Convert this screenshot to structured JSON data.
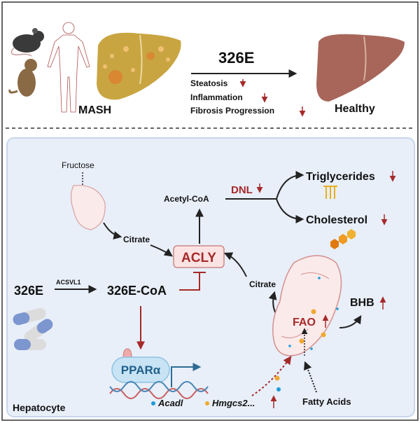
{
  "top": {
    "disease_label": "MASH",
    "drug_label": "326E",
    "outcomes": [
      "Steatosis",
      "Inflammation",
      "Fibrosis Progression"
    ],
    "healthy_label": "Healthy"
  },
  "pathway": {
    "fructose": "Fructose",
    "citrate_left": "Citrate",
    "acly": "ACLY",
    "acetyl_coa": "Acetyl-CoA",
    "dnl": "DNL",
    "triglycerides": "Triglycerides",
    "cholesterol": "Cholesterol",
    "drug": "326E",
    "enzyme": "ACSVL1",
    "drug_coa": "326E-CoA",
    "ppar": "PPARα",
    "gene1": "Acadl",
    "gene2": "Hmgcs2...",
    "citrate_right": "Citrate",
    "fao": "FAO",
    "bhb": "BHB",
    "fatty_acids": "Fatty Acids",
    "cell_label": "Hepatocyte"
  },
  "colors": {
    "down_arrow": "#a52a2a",
    "up_arrow": "#a52a2a",
    "cell_background": "#e8eff9",
    "acly_box": "#fbe3e3",
    "ppar": "#1f5f8b",
    "gene1_dot": "#1e9bd7",
    "gene2_dot": "#f0a830"
  }
}
